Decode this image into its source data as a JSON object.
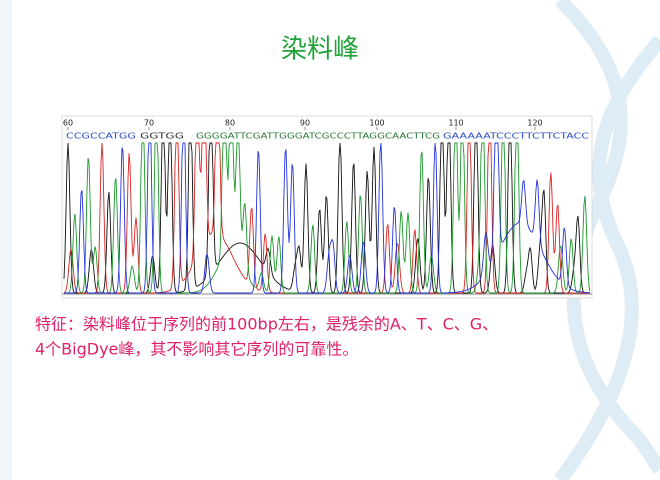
{
  "title": "染料峰",
  "chromatogram": {
    "ruler": [
      "60",
      "70",
      "80",
      "90",
      "100",
      "110",
      "120"
    ],
    "sequence": [
      "CCGCCATGG",
      "GGTGG",
      "GGGGATTCGATTGGGATCGCCCTTAGGCAACTTCG",
      "GAAAAATCCCTTCTTCTACC"
    ]
  },
  "description": [
    "特征：染料峰位于序列的前100bp左右，是残余的A、T、C、G、",
    "4个BigDye峰，其不影响其它序列的可靠性。"
  ]
}
